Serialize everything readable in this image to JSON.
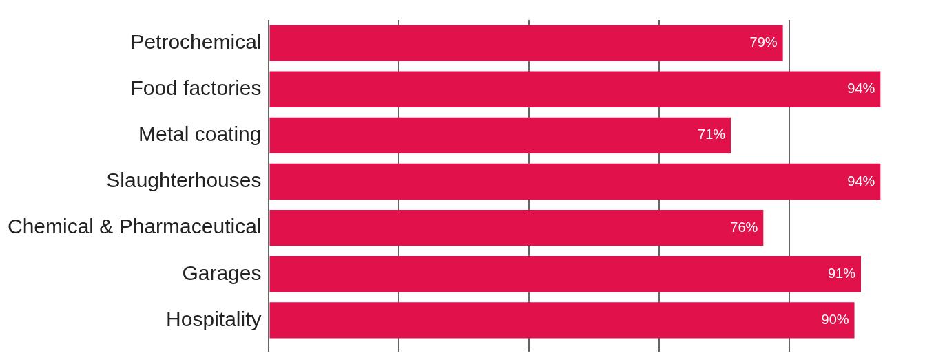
{
  "chart_data": {
    "type": "bar",
    "orientation": "horizontal",
    "categories": [
      "Petrochemical",
      "Food factories",
      "Metal coating",
      "Slaughterhouses",
      "Chemical & Pharmaceutical",
      "Garages",
      "Hospitality"
    ],
    "values": [
      79,
      94,
      71,
      94,
      76,
      91,
      90
    ],
    "value_labels": [
      "79%",
      "94%",
      "71%",
      "94%",
      "76%",
      "91%",
      "90%"
    ],
    "color": "#e0114b",
    "xticks": [
      {
        "value": 0,
        "label": null
      },
      {
        "value": 20,
        "label": null
      },
      {
        "value": 40,
        "label": null
      },
      {
        "value": 60,
        "label": null
      },
      {
        "value": 80,
        "label": null
      }
    ],
    "tick_labels": "y",
    "grid": "x",
    "legend": false
  }
}
